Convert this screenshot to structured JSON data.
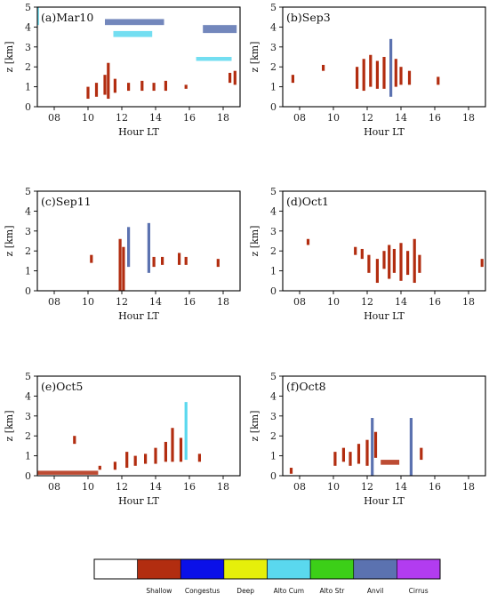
{
  "chart_data": {
    "type": "scatter",
    "description_labels": {
      "xlabel": "Hour LT",
      "ylabel": "z [km]"
    },
    "shared_axes": {
      "xlim": [
        7,
        19
      ],
      "ylim": [
        0,
        5
      ],
      "xticks": [
        8,
        10,
        12,
        14,
        16,
        18
      ],
      "xtick_labels": [
        "08",
        "10",
        "12",
        "14",
        "16",
        "18"
      ],
      "yticks": [
        0,
        1,
        2,
        3,
        4,
        5
      ],
      "ytick_labels": [
        "0",
        "1",
        "2",
        "3",
        "4",
        "5"
      ]
    },
    "legend": {
      "placement": "bottom",
      "categories": [
        {
          "name": "",
          "color": "#ffffff"
        },
        {
          "name": "Shallow",
          "color": "#b22d10"
        },
        {
          "name": "Congestus",
          "color": "#0a10e8"
        },
        {
          "name": "Deep",
          "color": "#e6ef0a"
        },
        {
          "name": "Alto Cum",
          "color": "#5ad8ee"
        },
        {
          "name": "Alto Str",
          "color": "#3ccf18"
        },
        {
          "name": "Anvil",
          "color": "#5b72b0"
        },
        {
          "name": "Cirrus",
          "color": "#b23cf0"
        }
      ]
    },
    "panels": [
      {
        "label": "(a)Mar10",
        "show_ylabel": true,
        "segments": [
          {
            "x": 11.2,
            "y0": 0.4,
            "y1": 2.2,
            "cat": "Shallow"
          },
          {
            "x": 10.0,
            "y0": 0.4,
            "y1": 1.0,
            "cat": "Shallow"
          },
          {
            "x": 10.5,
            "y0": 0.5,
            "y1": 1.2,
            "cat": "Shallow"
          },
          {
            "x": 11.0,
            "y0": 0.6,
            "y1": 1.6,
            "cat": "Shallow"
          },
          {
            "x": 11.6,
            "y0": 0.7,
            "y1": 1.4,
            "cat": "Shallow"
          },
          {
            "x": 12.4,
            "y0": 0.8,
            "y1": 1.2,
            "cat": "Shallow"
          },
          {
            "x": 13.2,
            "y0": 0.8,
            "y1": 1.3,
            "cat": "Shallow"
          },
          {
            "x": 13.9,
            "y0": 0.8,
            "y1": 1.2,
            "cat": "Shallow"
          },
          {
            "x": 14.6,
            "y0": 0.8,
            "y1": 1.3,
            "cat": "Shallow"
          },
          {
            "x": 15.8,
            "y0": 0.9,
            "y1": 1.1,
            "cat": "Shallow"
          },
          {
            "x": 18.7,
            "y0": 1.1,
            "y1": 1.8,
            "cat": "Shallow"
          },
          {
            "x": 18.4,
            "y0": 1.2,
            "y1": 1.7,
            "cat": "Shallow"
          }
        ],
        "bands": [
          {
            "x0": 11.0,
            "x1": 14.5,
            "y0": 4.1,
            "y1": 4.4,
            "cat": "Anvil"
          },
          {
            "x0": 16.8,
            "x1": 18.8,
            "y0": 3.7,
            "y1": 4.1,
            "cat": "Anvil"
          },
          {
            "x0": 11.5,
            "x1": 13.8,
            "y0": 3.5,
            "y1": 3.8,
            "cat": "Alto Cum"
          },
          {
            "x0": 16.4,
            "x1": 18.5,
            "y0": 2.3,
            "y1": 2.5,
            "cat": "Alto Cum"
          },
          {
            "x0": 7.0,
            "x1": 7.1,
            "y0": 4.1,
            "y1": 5.0,
            "cat": "Alto Cum"
          }
        ]
      },
      {
        "label": "(b)Sep3",
        "show_ylabel": false,
        "segments": [
          {
            "x": 7.6,
            "y0": 1.2,
            "y1": 1.6,
            "cat": "Shallow"
          },
          {
            "x": 9.4,
            "y0": 1.8,
            "y1": 2.1,
            "cat": "Shallow"
          },
          {
            "x": 11.4,
            "y0": 0.9,
            "y1": 2.0,
            "cat": "Shallow"
          },
          {
            "x": 11.8,
            "y0": 0.8,
            "y1": 2.4,
            "cat": "Shallow"
          },
          {
            "x": 12.2,
            "y0": 1.0,
            "y1": 2.6,
            "cat": "Shallow"
          },
          {
            "x": 12.6,
            "y0": 0.9,
            "y1": 2.3,
            "cat": "Shallow"
          },
          {
            "x": 13.0,
            "y0": 0.9,
            "y1": 2.5,
            "cat": "Shallow"
          },
          {
            "x": 13.4,
            "y0": 0.5,
            "y1": 3.4,
            "cat": "Anvil"
          },
          {
            "x": 13.7,
            "y0": 1.0,
            "y1": 2.4,
            "cat": "Shallow"
          },
          {
            "x": 14.0,
            "y0": 1.1,
            "y1": 2.0,
            "cat": "Shallow"
          },
          {
            "x": 14.5,
            "y0": 1.1,
            "y1": 1.8,
            "cat": "Shallow"
          },
          {
            "x": 16.2,
            "y0": 1.1,
            "y1": 1.5,
            "cat": "Shallow"
          }
        ],
        "bands": []
      },
      {
        "label": "(c)Sep11",
        "show_ylabel": true,
        "segments": [
          {
            "x": 10.2,
            "y0": 1.4,
            "y1": 1.8,
            "cat": "Shallow"
          },
          {
            "x": 11.9,
            "y0": 0.0,
            "y1": 2.6,
            "cat": "Shallow"
          },
          {
            "x": 12.1,
            "y0": 0.0,
            "y1": 2.2,
            "cat": "Shallow"
          },
          {
            "x": 12.4,
            "y0": 1.2,
            "y1": 3.2,
            "cat": "Anvil"
          },
          {
            "x": 13.6,
            "y0": 0.9,
            "y1": 3.4,
            "cat": "Anvil"
          },
          {
            "x": 13.9,
            "y0": 1.2,
            "y1": 1.7,
            "cat": "Shallow"
          },
          {
            "x": 14.4,
            "y0": 1.3,
            "y1": 1.7,
            "cat": "Shallow"
          },
          {
            "x": 15.4,
            "y0": 1.3,
            "y1": 1.9,
            "cat": "Shallow"
          },
          {
            "x": 15.8,
            "y0": 1.3,
            "y1": 1.7,
            "cat": "Shallow"
          },
          {
            "x": 17.7,
            "y0": 1.2,
            "y1": 1.6,
            "cat": "Shallow"
          }
        ],
        "bands": []
      },
      {
        "label": "(d)Oct1",
        "show_ylabel": false,
        "segments": [
          {
            "x": 8.5,
            "y0": 2.3,
            "y1": 2.6,
            "cat": "Shallow"
          },
          {
            "x": 11.3,
            "y0": 1.8,
            "y1": 2.2,
            "cat": "Shallow"
          },
          {
            "x": 11.7,
            "y0": 1.6,
            "y1": 2.1,
            "cat": "Shallow"
          },
          {
            "x": 12.1,
            "y0": 0.9,
            "y1": 1.8,
            "cat": "Shallow"
          },
          {
            "x": 12.6,
            "y0": 0.4,
            "y1": 1.6,
            "cat": "Shallow"
          },
          {
            "x": 13.0,
            "y0": 1.1,
            "y1": 2.0,
            "cat": "Shallow"
          },
          {
            "x": 13.3,
            "y0": 0.6,
            "y1": 2.3,
            "cat": "Shallow"
          },
          {
            "x": 13.6,
            "y0": 0.9,
            "y1": 2.1,
            "cat": "Shallow"
          },
          {
            "x": 14.0,
            "y0": 0.5,
            "y1": 2.4,
            "cat": "Shallow"
          },
          {
            "x": 14.4,
            "y0": 0.8,
            "y1": 2.0,
            "cat": "Shallow"
          },
          {
            "x": 14.8,
            "y0": 0.4,
            "y1": 2.6,
            "cat": "Shallow"
          },
          {
            "x": 15.1,
            "y0": 0.9,
            "y1": 1.8,
            "cat": "Shallow"
          },
          {
            "x": 18.8,
            "y0": 1.2,
            "y1": 1.6,
            "cat": "Shallow"
          }
        ],
        "bands": []
      },
      {
        "label": "(e)Oct5",
        "show_ylabel": true,
        "segments": [
          {
            "x": 9.2,
            "y0": 1.6,
            "y1": 2.0,
            "cat": "Shallow"
          },
          {
            "x": 10.7,
            "y0": 0.3,
            "y1": 0.5,
            "cat": "Shallow"
          },
          {
            "x": 11.6,
            "y0": 0.3,
            "y1": 0.7,
            "cat": "Shallow"
          },
          {
            "x": 12.3,
            "y0": 0.4,
            "y1": 1.2,
            "cat": "Shallow"
          },
          {
            "x": 12.8,
            "y0": 0.5,
            "y1": 1.0,
            "cat": "Shallow"
          },
          {
            "x": 13.4,
            "y0": 0.6,
            "y1": 1.1,
            "cat": "Shallow"
          },
          {
            "x": 14.0,
            "y0": 0.6,
            "y1": 1.4,
            "cat": "Shallow"
          },
          {
            "x": 14.6,
            "y0": 0.7,
            "y1": 1.7,
            "cat": "Shallow"
          },
          {
            "x": 15.0,
            "y0": 0.7,
            "y1": 2.4,
            "cat": "Shallow"
          },
          {
            "x": 15.5,
            "y0": 0.7,
            "y1": 1.9,
            "cat": "Shallow"
          },
          {
            "x": 15.8,
            "y0": 0.8,
            "y1": 3.7,
            "cat": "Alto Cum"
          },
          {
            "x": 16.6,
            "y0": 0.7,
            "y1": 1.1,
            "cat": "Shallow"
          }
        ],
        "bands": [
          {
            "x0": 7.0,
            "x1": 10.6,
            "y0": 0.05,
            "y1": 0.25,
            "cat": "Shallow"
          }
        ]
      },
      {
        "label": "(f)Oct8",
        "show_ylabel": false,
        "segments": [
          {
            "x": 7.5,
            "y0": 0.1,
            "y1": 0.4,
            "cat": "Shallow"
          },
          {
            "x": 10.1,
            "y0": 0.5,
            "y1": 1.2,
            "cat": "Shallow"
          },
          {
            "x": 10.6,
            "y0": 0.7,
            "y1": 1.4,
            "cat": "Shallow"
          },
          {
            "x": 11.0,
            "y0": 0.5,
            "y1": 1.2,
            "cat": "Shallow"
          },
          {
            "x": 11.5,
            "y0": 0.6,
            "y1": 1.6,
            "cat": "Shallow"
          },
          {
            "x": 12.0,
            "y0": 0.5,
            "y1": 1.8,
            "cat": "Shallow"
          },
          {
            "x": 12.3,
            "y0": 0.0,
            "y1": 2.9,
            "cat": "Anvil"
          },
          {
            "x": 12.5,
            "y0": 0.9,
            "y1": 2.2,
            "cat": "Shallow"
          },
          {
            "x": 14.6,
            "y0": 0.0,
            "y1": 2.9,
            "cat": "Anvil"
          },
          {
            "x": 15.2,
            "y0": 0.8,
            "y1": 1.4,
            "cat": "Shallow"
          }
        ],
        "bands": [
          {
            "x0": 12.8,
            "x1": 13.9,
            "y0": 0.55,
            "y1": 0.8,
            "cat": "Shallow"
          }
        ]
      }
    ]
  }
}
